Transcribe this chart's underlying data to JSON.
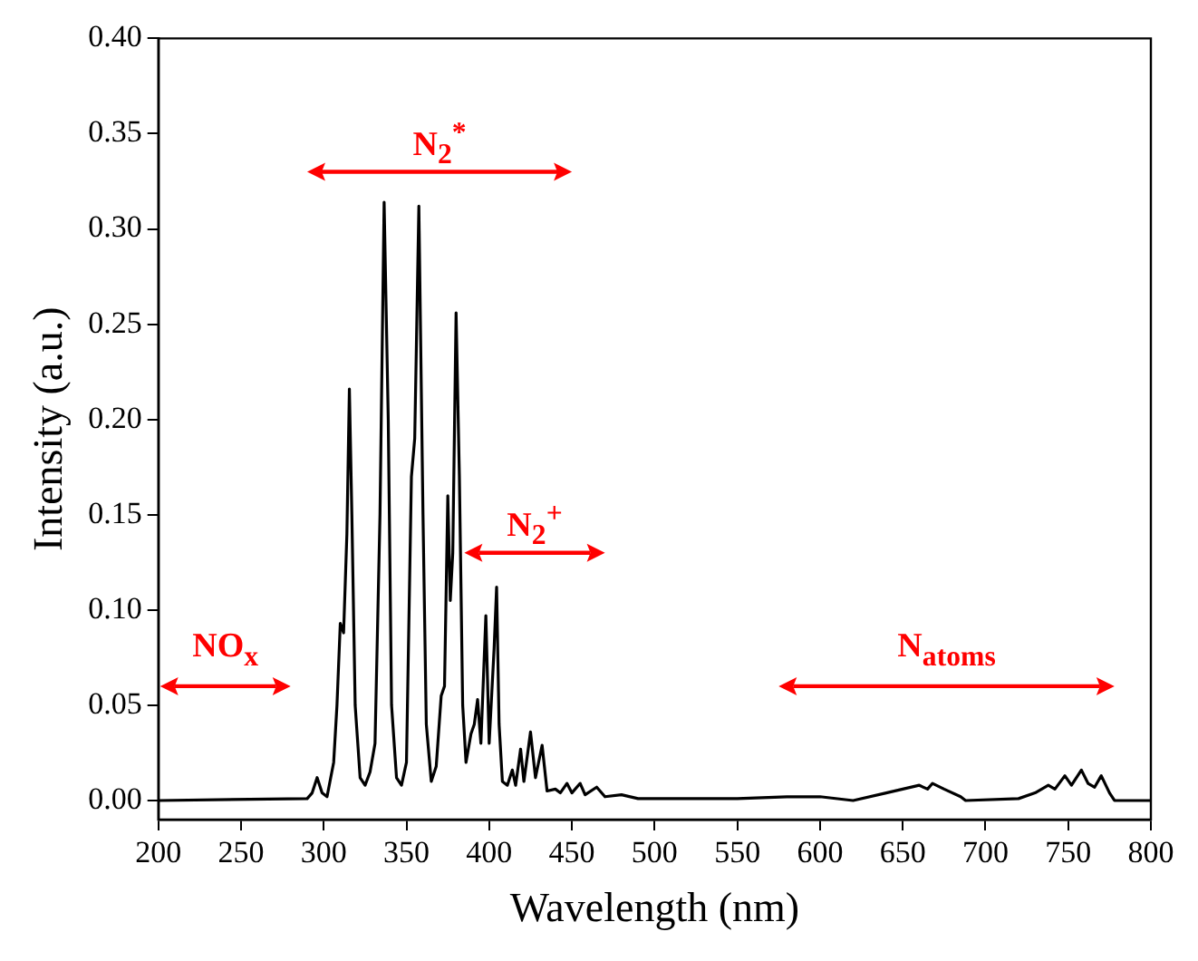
{
  "chart_data": {
    "type": "line",
    "xlabel": "Wavelength (nm)",
    "ylabel": "Intensity (a.u.)",
    "x": [
      200,
      290,
      293,
      296,
      299,
      302,
      306,
      308,
      310,
      312,
      314,
      315.5,
      317,
      319,
      322,
      325,
      328,
      331,
      334,
      336.5,
      339,
      341,
      344,
      347,
      350,
      353,
      355,
      357.5,
      360,
      362,
      365,
      368,
      371,
      373,
      375,
      376.5,
      378,
      380,
      382,
      384,
      386,
      389,
      391,
      393,
      395,
      398,
      400,
      403,
      404.5,
      406,
      408,
      411,
      414,
      416,
      419,
      421,
      425,
      428,
      432,
      435,
      440,
      443,
      447,
      450,
      455,
      458,
      465,
      470,
      480,
      490,
      500,
      550,
      580,
      600,
      620,
      640,
      650,
      660,
      665,
      668,
      675,
      685,
      688,
      720,
      730,
      738,
      742,
      748,
      752,
      758,
      762,
      766,
      770,
      775,
      778,
      800
    ],
    "series": [
      {
        "color": "#000000",
        "values": [
          0,
          0.001,
          0.004,
          0.012,
          0.004,
          0.002,
          0.02,
          0.05,
          0.093,
          0.088,
          0.14,
          0.216,
          0.15,
          0.05,
          0.012,
          0.008,
          0.015,
          0.03,
          0.15,
          0.314,
          0.2,
          0.05,
          0.012,
          0.008,
          0.02,
          0.17,
          0.19,
          0.312,
          0.15,
          0.04,
          0.01,
          0.018,
          0.055,
          0.06,
          0.16,
          0.105,
          0.13,
          0.256,
          0.17,
          0.05,
          0.02,
          0.035,
          0.04,
          0.053,
          0.03,
          0.097,
          0.03,
          0.08,
          0.112,
          0.04,
          0.01,
          0.008,
          0.016,
          0.008,
          0.027,
          0.01,
          0.036,
          0.012,
          0.029,
          0.005,
          0.006,
          0.004,
          0.009,
          0.004,
          0.009,
          0.003,
          0.007,
          0.002,
          0.003,
          0.001,
          0.001,
          0.001,
          0.002,
          0.002,
          0,
          0.004,
          0.006,
          0.008,
          0.006,
          0.009,
          0.006,
          0.002,
          0,
          0.001,
          0.004,
          0.008,
          0.006,
          0.013,
          0.008,
          0.016,
          0.009,
          0.007,
          0.013,
          0.004,
          0,
          0
        ]
      }
    ],
    "xlim": [
      200,
      800
    ],
    "xticks": [
      200,
      250,
      300,
      350,
      400,
      450,
      500,
      550,
      600,
      650,
      700,
      750,
      800
    ],
    "ylim": [
      -0.01,
      0.4
    ],
    "yticks": [
      {
        "value": 0,
        "label": "0.00"
      },
      {
        "value": 0.05,
        "label": "0.05"
      },
      {
        "value": 0.1,
        "label": "0.10"
      },
      {
        "value": 0.15,
        "label": "0.15"
      },
      {
        "value": 0.2,
        "label": "0.20"
      },
      {
        "value": 0.25,
        "label": "0.25"
      },
      {
        "value": 0.3,
        "label": "0.30"
      },
      {
        "value": 0.35,
        "label": "0.35"
      },
      {
        "value": 0.4,
        "label": "0.40"
      }
    ],
    "annotations": [
      "N$_{2}$$^{*}$",
      "N$_{2}$$^{+}$",
      "NO$_{x}$",
      "N$_{atoms}$"
    ],
    "grid": false,
    "legend": false,
    "marker": "none",
    "line_style": "solid"
  }
}
